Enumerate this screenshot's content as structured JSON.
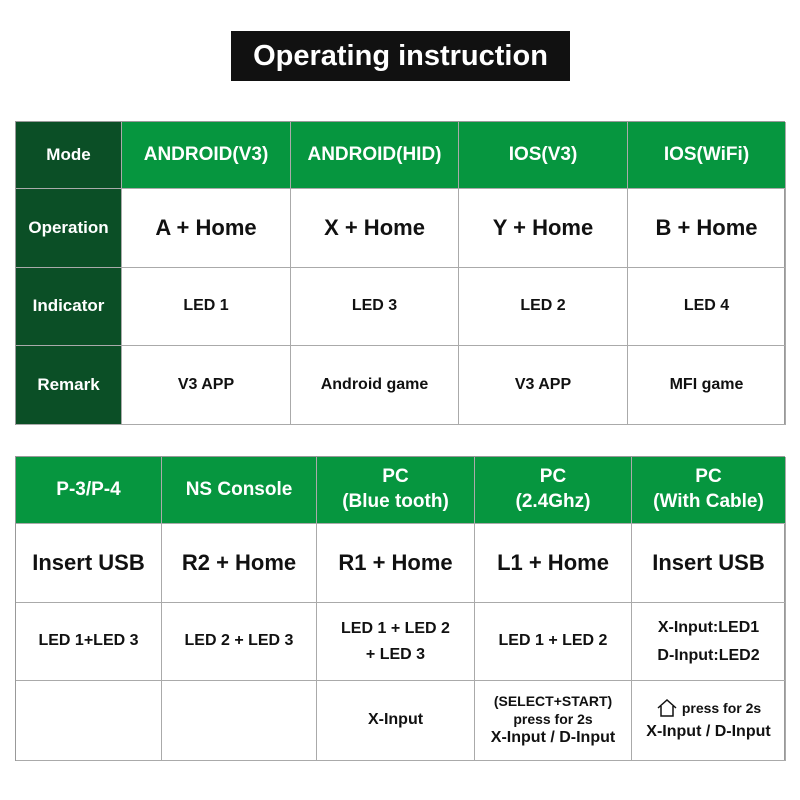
{
  "title": "Operating instruction",
  "table1": {
    "row_headers": [
      "Mode",
      "Operation",
      "Indicator",
      "Remark"
    ],
    "modes": [
      "ANDROID(V3)",
      "ANDROID(HID)",
      "IOS(V3)",
      "IOS(WiFi)"
    ],
    "operations": [
      "A + Home",
      "X + Home",
      "Y + Home",
      "B + Home"
    ],
    "indicators": [
      "LED 1",
      "LED 3",
      "LED 2",
      "LED 4"
    ],
    "remarks": [
      "V3 APP",
      "Android game",
      "V3 APP",
      "MFI game"
    ]
  },
  "table2": {
    "modes": [
      [
        "P-3/P-4",
        ""
      ],
      [
        "NS Console",
        ""
      ],
      [
        "PC",
        "(Blue tooth)"
      ],
      [
        "PC",
        "(2.4Ghz)"
      ],
      [
        "PC",
        "(With Cable)"
      ]
    ],
    "operations": [
      "Insert USB",
      "R2 + Home",
      "R1 + Home",
      "L1 + Home",
      "Insert USB"
    ],
    "indicators": [
      [
        "LED 1+LED 3",
        ""
      ],
      [
        "LED 2 + LED 3",
        ""
      ],
      [
        "LED 1 + LED 2",
        "+ LED 3"
      ],
      [
        "LED 1 + LED 2",
        ""
      ],
      [
        "X-Input:LED1",
        "D-Input:LED2"
      ]
    ],
    "remarks": [
      [
        "",
        ""
      ],
      [
        "",
        ""
      ],
      [
        "X-Input",
        ""
      ],
      [
        "(SELECT+START)",
        "press for 2s",
        "X-Input / D-Input"
      ],
      [
        "press for 2s",
        "X-Input / D-Input"
      ]
    ],
    "home_icon": "home-icon"
  },
  "colors": {
    "header_green": "#06963f",
    "row_header_dark_green": "#0b4f26",
    "title_bg": "#111111"
  }
}
